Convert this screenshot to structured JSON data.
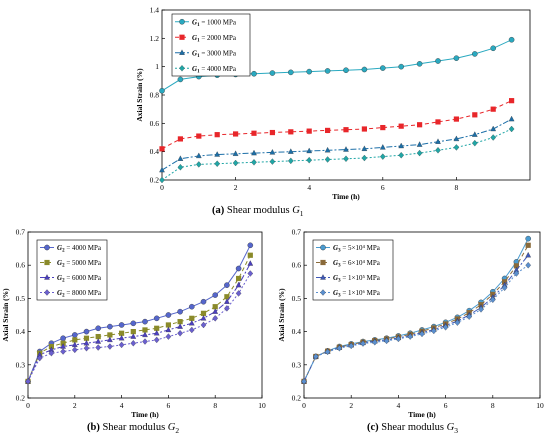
{
  "captions": [
    {
      "label": "(a)",
      "text": "Shear modulus",
      "var": "G",
      "sub": "1"
    },
    {
      "label": "(b)",
      "text": "Shear modulus",
      "var": "G",
      "sub": "2"
    },
    {
      "label": "(c)",
      "text": "Shear modulus",
      "var": "G",
      "sub": "3"
    }
  ],
  "chart_data": [
    {
      "type": "line",
      "panel": "a",
      "xlabel": "Time (h)",
      "ylabel": "Axial Strain (%)",
      "xlim": [
        0,
        10
      ],
      "ylim": [
        0.2,
        1.4
      ],
      "xticks": [
        0,
        2,
        4,
        6,
        8
      ],
      "yticks": [
        0.2,
        0.4,
        0.6,
        0.8,
        1.0,
        1.2,
        1.4
      ],
      "ytick_labels": [
        "0.2",
        "0.4",
        "0.6",
        "0.8",
        "1",
        "1.2",
        "1.4"
      ],
      "grid": false,
      "legend": "top-left",
      "x": [
        0,
        0.5,
        1,
        1.5,
        2,
        2.5,
        3,
        3.5,
        4,
        4.5,
        5,
        5.5,
        6,
        6.5,
        7,
        7.5,
        8,
        8.5,
        9,
        9.5
      ],
      "series": [
        {
          "name": "G1 = 1000 MPa",
          "var": "G",
          "sub": "1",
          "value_text": " = 1000 MPa",
          "color": "#2aa9c0",
          "marker": "circle",
          "dash": "none",
          "values": [
            0.83,
            0.91,
            0.93,
            0.94,
            0.945,
            0.95,
            0.955,
            0.96,
            0.965,
            0.97,
            0.975,
            0.98,
            0.99,
            1.0,
            1.02,
            1.04,
            1.06,
            1.09,
            1.13,
            1.19
          ]
        },
        {
          "name": "G1 = 2000 MPa",
          "var": "G",
          "sub": "1",
          "value_text": " = 2000 MPa",
          "color": "#e8262a",
          "marker": "square",
          "dash": "4,3",
          "values": [
            0.42,
            0.49,
            0.51,
            0.52,
            0.525,
            0.53,
            0.535,
            0.54,
            0.545,
            0.55,
            0.555,
            0.56,
            0.57,
            0.58,
            0.59,
            0.61,
            0.63,
            0.66,
            0.7,
            0.76
          ]
        },
        {
          "name": "G1 = 3000 MPa",
          "var": "G",
          "sub": "1",
          "value_text": " = 3000 MPa",
          "color": "#1c6fa8",
          "marker": "triangle",
          "dash": "6,2,2,2",
          "values": [
            0.27,
            0.35,
            0.37,
            0.38,
            0.385,
            0.39,
            0.395,
            0.4,
            0.405,
            0.41,
            0.415,
            0.42,
            0.43,
            0.44,
            0.45,
            0.47,
            0.49,
            0.52,
            0.56,
            0.63
          ]
        },
        {
          "name": "G1 = 4000 MPa",
          "var": "G",
          "sub": "1",
          "value_text": " = 4000 MPa",
          "color": "#20a6a6",
          "marker": "diamond",
          "dash": "2,2",
          "values": [
            0.2,
            0.29,
            0.31,
            0.315,
            0.32,
            0.325,
            0.33,
            0.335,
            0.34,
            0.345,
            0.35,
            0.355,
            0.365,
            0.375,
            0.39,
            0.41,
            0.43,
            0.46,
            0.5,
            0.56
          ]
        }
      ]
    },
    {
      "type": "line",
      "panel": "b",
      "xlabel": "Time (h)",
      "ylabel": "Axial Strain (%)",
      "xlim": [
        0,
        10
      ],
      "ylim": [
        0.2,
        0.7
      ],
      "xticks": [
        0,
        2,
        4,
        6,
        8,
        10
      ],
      "yticks": [
        0.2,
        0.3,
        0.4,
        0.5,
        0.6,
        0.7
      ],
      "ytick_labels": [
        "0.2",
        "0.3",
        "0.4",
        "0.5",
        "0.6",
        "0.7"
      ],
      "grid": false,
      "legend": "top-left",
      "x": [
        0,
        0.5,
        1,
        1.5,
        2,
        2.5,
        3,
        3.5,
        4,
        4.5,
        5,
        5.5,
        6,
        6.5,
        7,
        7.5,
        8,
        8.5,
        9,
        9.5
      ],
      "series": [
        {
          "name": "G2 = 4000 MPa",
          "var": "G",
          "sub": "2",
          "value_text": " = 4000 MPa",
          "color": "#5566cc",
          "marker": "circle",
          "dash": "none",
          "values": [
            0.25,
            0.34,
            0.365,
            0.38,
            0.39,
            0.4,
            0.41,
            0.415,
            0.42,
            0.425,
            0.43,
            0.44,
            0.45,
            0.46,
            0.475,
            0.49,
            0.51,
            0.54,
            0.59,
            0.66
          ]
        },
        {
          "name": "G2 = 5000 MPa",
          "var": "G",
          "sub": "2",
          "value_text": " = 5000 MPa",
          "color": "#8a8a2a",
          "marker": "square",
          "dash": "4,3",
          "values": [
            0.25,
            0.335,
            0.355,
            0.365,
            0.375,
            0.38,
            0.385,
            0.39,
            0.395,
            0.4,
            0.405,
            0.41,
            0.42,
            0.43,
            0.44,
            0.455,
            0.475,
            0.505,
            0.56,
            0.63
          ]
        },
        {
          "name": "G2 = 6000 MPa",
          "var": "G",
          "sub": "2",
          "value_text": " = 6000 MPa",
          "color": "#4b3fbf",
          "marker": "triangle",
          "dash": "6,2,2,2",
          "values": [
            0.25,
            0.33,
            0.345,
            0.355,
            0.36,
            0.365,
            0.37,
            0.375,
            0.38,
            0.385,
            0.39,
            0.395,
            0.405,
            0.415,
            0.425,
            0.44,
            0.46,
            0.49,
            0.54,
            0.605
          ]
        },
        {
          "name": "G2 = 8000 MPa",
          "var": "G",
          "sub": "2",
          "value_text": " = 8000 MPa",
          "color": "#6a5fcf",
          "marker": "diamond",
          "dash": "2,2",
          "values": [
            0.25,
            0.32,
            0.335,
            0.34,
            0.345,
            0.35,
            0.352,
            0.355,
            0.36,
            0.365,
            0.37,
            0.375,
            0.385,
            0.395,
            0.405,
            0.42,
            0.44,
            0.47,
            0.515,
            0.575
          ]
        }
      ]
    },
    {
      "type": "line",
      "panel": "c",
      "xlabel": "Time (h)",
      "ylabel": "Axial Strain (%)",
      "xlim": [
        0,
        10
      ],
      "ylim": [
        0.2,
        0.7
      ],
      "xticks": [
        0,
        2,
        4,
        6,
        8,
        10
      ],
      "yticks": [
        0.2,
        0.3,
        0.4,
        0.5,
        0.6,
        0.7
      ],
      "ytick_labels": [
        "0.2",
        "0.3",
        "0.4",
        "0.5",
        "0.6",
        "0.7"
      ],
      "grid": false,
      "legend": "top-left",
      "x": [
        0,
        0.5,
        1,
        1.5,
        2,
        2.5,
        3,
        3.5,
        4,
        4.5,
        5,
        5.5,
        6,
        6.5,
        7,
        7.5,
        8,
        8.5,
        9,
        9.5
      ],
      "series": [
        {
          "name": "G3 = 5×10⁴ MPa",
          "var": "G",
          "sub": "3",
          "value_text": " = 5×10⁴ MPa",
          "color": "#4a9bd0",
          "marker": "circle",
          "dash": "none",
          "values": [
            0.25,
            0.325,
            0.342,
            0.355,
            0.363,
            0.37,
            0.375,
            0.38,
            0.387,
            0.395,
            0.405,
            0.415,
            0.428,
            0.443,
            0.463,
            0.488,
            0.52,
            0.56,
            0.61,
            0.68
          ]
        },
        {
          "name": "G3 = 6×10⁴ MPa",
          "var": "G",
          "sub": "3",
          "value_text": " = 6×10⁴ MPa",
          "color": "#8a6a3a",
          "marker": "square",
          "dash": "4,3",
          "values": [
            0.25,
            0.325,
            0.341,
            0.353,
            0.361,
            0.368,
            0.373,
            0.378,
            0.384,
            0.392,
            0.401,
            0.411,
            0.423,
            0.438,
            0.457,
            0.481,
            0.512,
            0.55,
            0.598,
            0.66
          ]
        },
        {
          "name": "G3 = 1×10⁵ MPa",
          "var": "G",
          "sub": "3",
          "value_text": " = 1×10⁵ MPa",
          "color": "#3f59b8",
          "marker": "triangle",
          "dash": "6,2,2,2",
          "values": [
            0.25,
            0.325,
            0.34,
            0.352,
            0.359,
            0.366,
            0.371,
            0.375,
            0.381,
            0.388,
            0.397,
            0.406,
            0.418,
            0.432,
            0.45,
            0.473,
            0.503,
            0.54,
            0.585,
            0.63
          ]
        },
        {
          "name": "G3 = 1×10⁶ MPa",
          "var": "G",
          "sub": "3",
          "value_text": " = 1×10⁶ MPa",
          "color": "#5a8fcf",
          "marker": "diamond",
          "dash": "2,2",
          "values": [
            0.25,
            0.325,
            0.339,
            0.35,
            0.357,
            0.364,
            0.368,
            0.372,
            0.378,
            0.385,
            0.393,
            0.402,
            0.413,
            0.427,
            0.445,
            0.467,
            0.496,
            0.532,
            0.575,
            0.6
          ]
        }
      ]
    }
  ]
}
